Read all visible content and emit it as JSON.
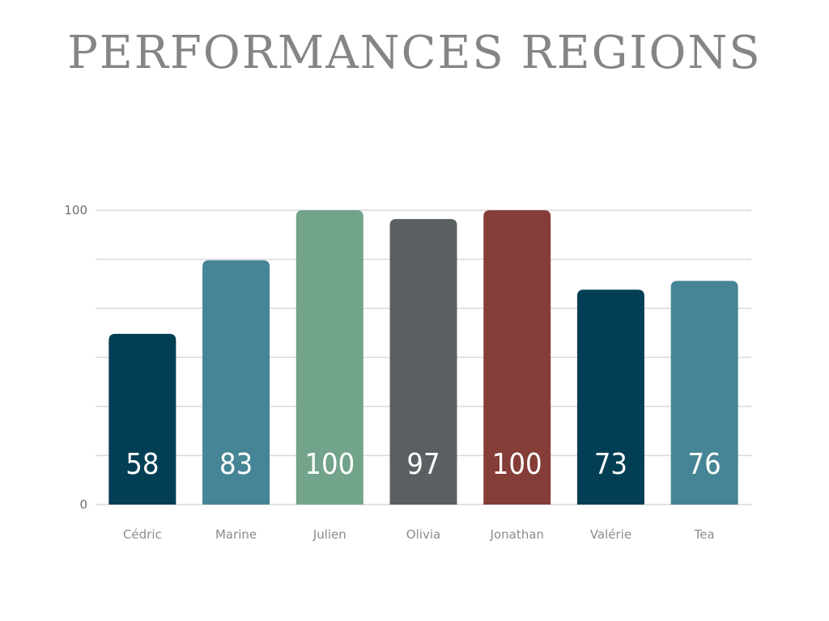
{
  "title": "PERFORMANCES REGIONS",
  "chart_data": {
    "type": "bar",
    "title": "PERFORMANCES REGIONS",
    "categories": [
      "Cédric",
      "Marine",
      "Julien",
      "Olivia",
      "Jonathan",
      "Valérie",
      "Tea"
    ],
    "values": [
      58,
      83,
      100,
      97,
      100,
      73,
      76
    ],
    "colors": [
      "#033f54",
      "#468595",
      "#72a38b",
      "#5a6062",
      "#853d38",
      "#033f54",
      "#468595"
    ],
    "ylim": [
      0,
      100
    ],
    "yticks": [
      "0",
      "100"
    ],
    "gridlines": 6,
    "grid": true,
    "xlabel": "",
    "ylabel": ""
  }
}
